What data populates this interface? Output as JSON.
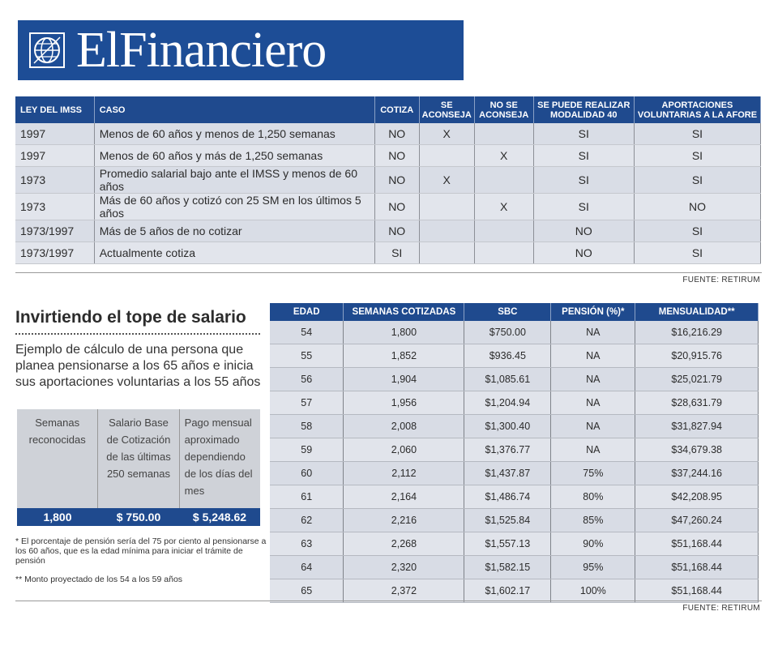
{
  "logo": {
    "text": "ElFinanciero"
  },
  "table1": {
    "headers": [
      "LEY DEL IMSS",
      "CASO",
      "COTIZA",
      "SE ACONSEJA",
      "NO SE ACONSEJA",
      "SE PUEDE REALIZAR MODALIDAD 40",
      "APORTACIONES VOLUNTARIAS A LA AFORE"
    ],
    "rows": [
      [
        "1997",
        "Menos de 60 años y menos de 1,250 semanas",
        "NO",
        "X",
        "",
        "SI",
        "SI"
      ],
      [
        "1997",
        "Menos de 60 años y más de 1,250 semanas",
        "NO",
        "",
        "X",
        "SI",
        "SI"
      ],
      [
        "1973",
        "Promedio salarial bajo ante el IMSS y menos de 60 años",
        "NO",
        "X",
        "",
        "SI",
        "SI"
      ],
      [
        "1973",
        "Más de 60 años y cotizó con 25 SM en los últimos 5 años",
        "NO",
        "",
        "X",
        "SI",
        "NO"
      ],
      [
        "1973/1997",
        "Más de 5 años de no cotizar",
        "NO",
        "",
        "",
        "NO",
        "SI"
      ],
      [
        "1973/1997",
        "Actualmente cotiza",
        "SI",
        "",
        "",
        "NO",
        "SI"
      ]
    ],
    "source": "FUENTE: RETIRUM"
  },
  "left": {
    "headline": "Invirtiendo el tope de salario",
    "intro": "Ejemplo de cálculo de una persona que planea pensionarse a los 65 años e inicia sus aportaciones voluntarias a los 55 años",
    "kpi_labels": [
      "Semanas reconocidas",
      "Salario Base de Cotización de las últimas 250 semanas",
      "Pago mensual aproximado dependiendo de los días del mes"
    ],
    "kpi_values": [
      "1,800",
      "$ 750.00",
      "$ 5,248.62"
    ],
    "note1": "* El porcentaje de pensión sería del 75 por ciento al pensionarse a los 60 años, que es la edad mínima para iniciar el trámite de pensión",
    "note2": "** Monto proyectado de los 54 a los 59 años"
  },
  "table2": {
    "headers": [
      "EDAD",
      "SEMANAS COTIZADAS",
      "SBC",
      "PENSIÓN (%)*",
      "MENSUALIDAD**"
    ],
    "rows": [
      [
        "54",
        "1,800",
        "$750.00",
        "NA",
        "$16,216.29"
      ],
      [
        "55",
        "1,852",
        "$936.45",
        "NA",
        "$20,915.76"
      ],
      [
        "56",
        "1,904",
        "$1,085.61",
        "NA",
        "$25,021.79"
      ],
      [
        "57",
        "1,956",
        "$1,204.94",
        "NA",
        "$28,631.79"
      ],
      [
        "58",
        "2,008",
        "$1,300.40",
        "NA",
        "$31,827.94"
      ],
      [
        "59",
        "2,060",
        "$1,376.77",
        "NA",
        "$34,679.38"
      ],
      [
        "60",
        "2,112",
        "$1,437.87",
        "75%",
        "$37,244.16"
      ],
      [
        "61",
        "2,164",
        "$1,486.74",
        "80%",
        "$42,208.95"
      ],
      [
        "62",
        "2,216",
        "$1,525.84",
        "85%",
        "$47,260.24"
      ],
      [
        "63",
        "2,268",
        "$1,557.13",
        "90%",
        "$51,168.44"
      ],
      [
        "64",
        "2,320",
        "$1,582.15",
        "95%",
        "$51,168.44"
      ],
      [
        "65",
        "2,372",
        "$1,602.17",
        "100%",
        "$51,168.44"
      ]
    ],
    "source": "FUENTE: RETIRUM"
  }
}
